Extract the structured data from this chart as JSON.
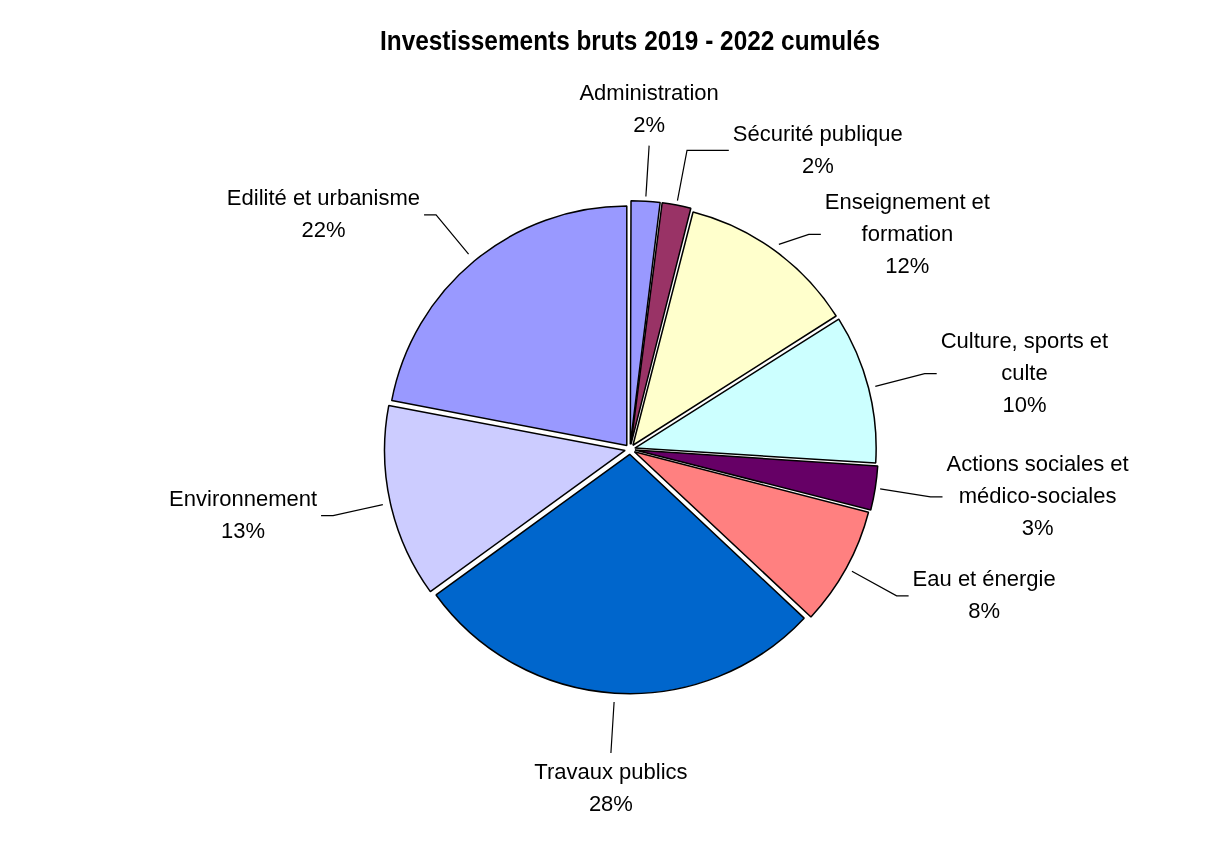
{
  "chart_data": {
    "type": "pie",
    "title": "Investissements bruts 2019 - 2022 cumulés",
    "categories": [
      "Administration",
      "Sécurité publique",
      "Enseignement et formation",
      "Culture, sports et culte",
      "Actions sociales et médico-sociales",
      "Eau et énergie",
      "Travaux publics",
      "Environnement",
      "Edilité et urbanisme"
    ],
    "values": [
      2,
      2,
      12,
      10,
      3,
      8,
      28,
      13,
      22
    ],
    "value_labels": [
      "2%",
      "2%",
      "12%",
      "10%",
      "3%",
      "8%",
      "28%",
      "13%",
      "22%"
    ],
    "colors": [
      "#9999ff",
      "#993366",
      "#ffffcc",
      "#ccffff",
      "#660066",
      "#ff8080",
      "#0066cc",
      "#ccccff",
      "#9999ff"
    ],
    "legend": false
  }
}
